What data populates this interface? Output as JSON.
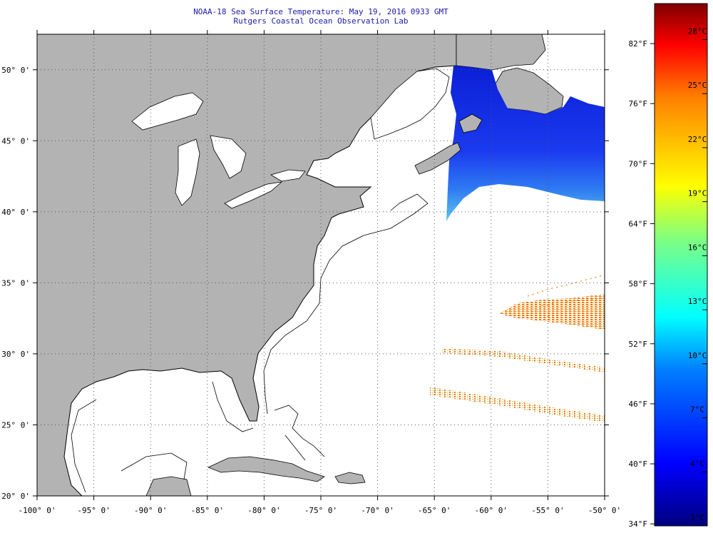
{
  "header": {
    "title": "NOAA-18 Sea Surface Temperature:  May 19, 2016 0933 GMT",
    "subtitle": "Rutgers Coastal Ocean Observation Lab"
  },
  "map": {
    "lon_range": [
      -100,
      -50
    ],
    "lat_range": [
      20,
      52.5
    ],
    "lon_ticks": [
      {
        "value": -100,
        "label": "-100° 0'"
      },
      {
        "value": -95,
        "label": "-95° 0'"
      },
      {
        "value": -90,
        "label": "-90° 0'"
      },
      {
        "value": -85,
        "label": "-85° 0'"
      },
      {
        "value": -80,
        "label": "-80° 0'"
      },
      {
        "value": -75,
        "label": "-75° 0'"
      },
      {
        "value": -70,
        "label": "-70° 0'"
      },
      {
        "value": -65,
        "label": "-65° 0'"
      },
      {
        "value": -60,
        "label": "-60° 0'"
      },
      {
        "value": -55,
        "label": "-55° 0'"
      },
      {
        "value": -50,
        "label": "-50° 0'"
      }
    ],
    "lat_ticks": [
      {
        "value": 20,
        "label": "20° 0'"
      },
      {
        "value": 25,
        "label": "25° 0'"
      },
      {
        "value": 30,
        "label": "30° 0'"
      },
      {
        "value": 35,
        "label": "35° 0'"
      },
      {
        "value": 40,
        "label": "40° 0'"
      },
      {
        "value": 45,
        "label": "45° 0'"
      },
      {
        "value": 50,
        "label": "50° 0'"
      }
    ],
    "colors": {
      "land": "#b3b3b3",
      "ocean_nodata": "#ffffff",
      "coast": "#000000",
      "grid": "#555555"
    }
  },
  "colorbar": {
    "range_c": [
      1,
      30
    ],
    "fahrenheit_labels": [
      "82°F",
      "76°F",
      "70°F",
      "64°F",
      "58°F",
      "52°F",
      "46°F",
      "40°F",
      "34°F"
    ],
    "celsius_labels": [
      "28°C",
      "25°C",
      "22°C",
      "19°C",
      "16°C",
      "13°C",
      "10°C",
      "7°C",
      "4°C",
      "1°C"
    ]
  }
}
